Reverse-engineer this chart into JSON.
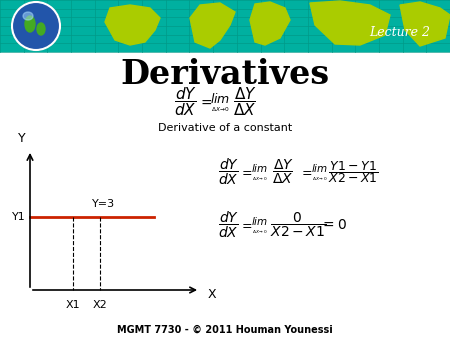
{
  "title": "Derivatives",
  "subtitle": "Derivative of a constant",
  "footer": "MGMT 7730 - © 2011 Houman Younessi",
  "lecture_label": "Lecture 2",
  "background_color": "#ffffff",
  "header_teal": "#00b0a0",
  "header_land": "#aacc00",
  "line_color": "#cc2200",
  "y1_label": "Y1",
  "x1_label": "X1",
  "x2_label": "X2",
  "y_label": "Y",
  "x_label": "X",
  "y3_label": "Y=3"
}
